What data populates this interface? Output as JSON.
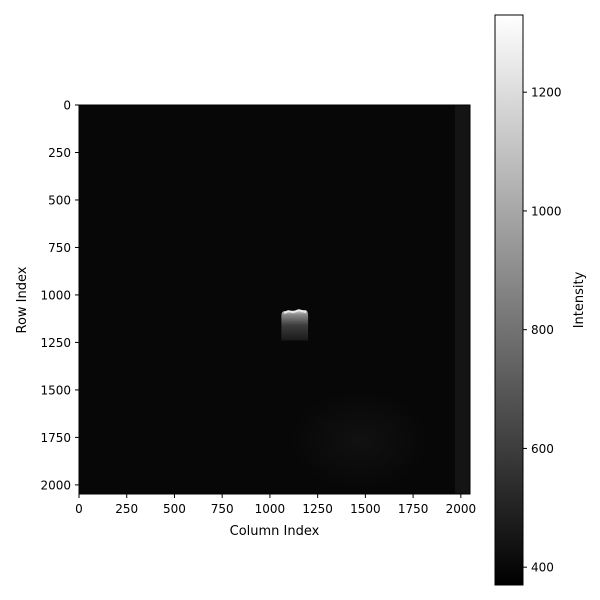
{
  "chart_data": {
    "type": "heatmap",
    "title": "",
    "xlabel": "Column Index",
    "ylabel": "Row Index",
    "xlim": [
      0,
      2048
    ],
    "ylim": [
      2048,
      0
    ],
    "x_ticks": [
      "0",
      "250",
      "500",
      "750",
      "1000",
      "1250",
      "1500",
      "1750",
      "2000"
    ],
    "y_ticks": [
      "0",
      "250",
      "500",
      "750",
      "1000",
      "1250",
      "1500",
      "1750",
      "2000"
    ],
    "colormap": "gray",
    "grid": false,
    "background_intensity": 395,
    "features": [
      {
        "kind": "bright-blob",
        "col_range": [
          1060,
          1200
        ],
        "row_range": [
          1080,
          1240
        ],
        "peak_intensity": 1250
      }
    ],
    "colorbar": {
      "label": "Intensity",
      "vmin": 370,
      "vmax": 1330,
      "ticks": [
        {
          "value": 400,
          "label": "400"
        },
        {
          "value": 600,
          "label": "600"
        },
        {
          "value": 800,
          "label": "800"
        },
        {
          "value": 1000,
          "label": "1000"
        },
        {
          "value": 1200,
          "label": "1200"
        }
      ]
    }
  }
}
